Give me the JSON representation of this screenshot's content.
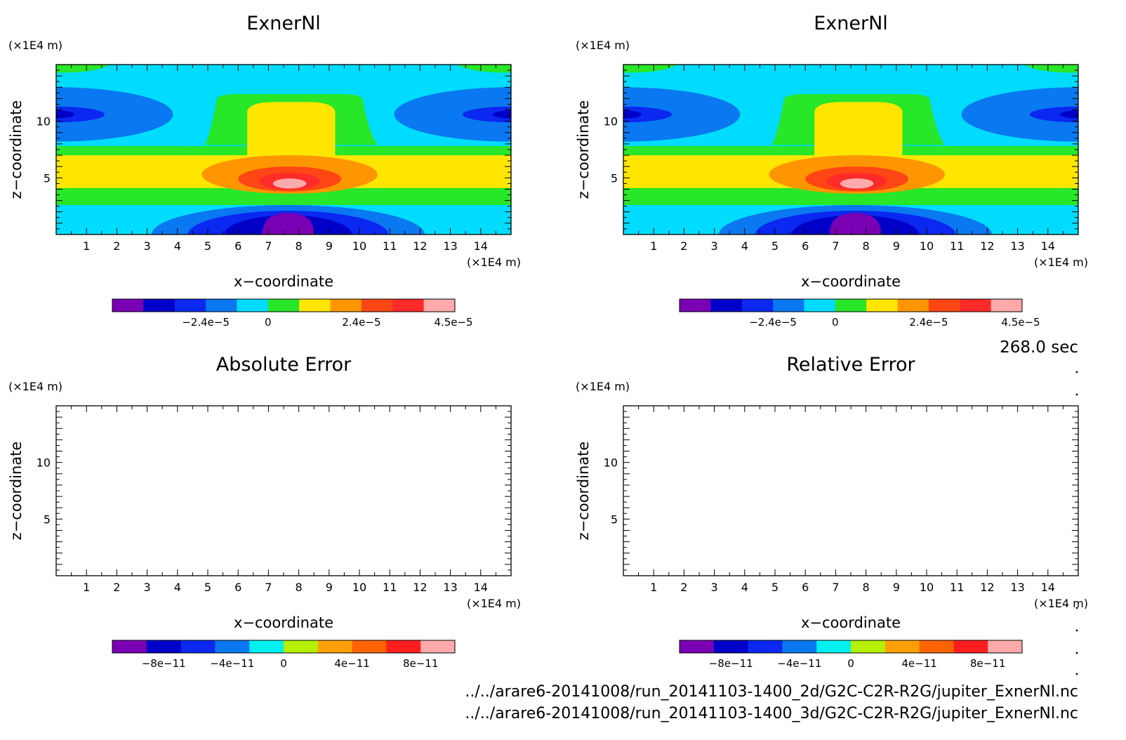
{
  "time_label": "268.0 sec",
  "footer": {
    "file_2d": "../../arare6-20141008/run_20141103-1400_2d/G2C-C2R-R2G/jupiter_ExnerNl.nc",
    "file_3d": "../../arare6-20141008/run_20141103-1400_3d/G2C-C2R-R2G/jupiter_ExnerNl.nc"
  },
  "chart_data": [
    {
      "type": "heatmap",
      "title": "ExnerNl",
      "xlabel": "x−coordinate",
      "ylabel": "z−coordinate",
      "x_unit": "(×1E4 m)",
      "y_unit": "(×1E4 m)",
      "xlim": [
        0,
        15
      ],
      "ylim": [
        0,
        15
      ],
      "x_ticks": [
        "1",
        "2",
        "3",
        "4",
        "5",
        "6",
        "7",
        "8",
        "9",
        "10",
        "11",
        "12",
        "13",
        "14"
      ],
      "y_ticks": [
        "5",
        "10"
      ],
      "colorbar": {
        "colors": [
          "#7a00b4",
          "#0000c8",
          "#0a28f0",
          "#0a78f0",
          "#00dcff",
          "#28e628",
          "#ffe600",
          "#ff9600",
          "#ff4614",
          "#ff2a2a",
          "#ffaaaa"
        ],
        "labels": [
          "−2.4e−5",
          "0",
          "2.4e−5",
          "4.5e−5"
        ]
      },
      "contours": {
        "background": "#00dcff",
        "regions": [
          {
            "level": "lowest",
            "color": "#7a00b4",
            "location": "bottom-center"
          },
          {
            "level": "strong negative",
            "color": "#0000c8",
            "location": "bottom-center / upper sides"
          },
          {
            "level": "negative",
            "color": "#0a28f0",
            "location": "bottom-center / upper sides"
          },
          {
            "level": "weak negative",
            "color": "#0a78f0",
            "location": "bottom-center / upper sides"
          },
          {
            "level": "near zero",
            "color": "#28e628",
            "location": "mid band and top"
          },
          {
            "level": "positive",
            "color": "#ffe600",
            "location": "center column"
          },
          {
            "level": "high positive",
            "color": "#ff9600",
            "location": "center"
          },
          {
            "level": "higher positive",
            "color": "#ff4614",
            "location": "center"
          },
          {
            "level": "maximum",
            "color": "#ffaaaa",
            "location": "center"
          }
        ]
      }
    },
    {
      "type": "heatmap",
      "title": "ExnerNl",
      "xlabel": "x−coordinate",
      "ylabel": "z−coordinate",
      "x_unit": "(×1E4 m)",
      "y_unit": "(×1E4 m)",
      "xlim": [
        0,
        15
      ],
      "ylim": [
        0,
        15
      ],
      "x_ticks": [
        "1",
        "2",
        "3",
        "4",
        "5",
        "6",
        "7",
        "8",
        "9",
        "10",
        "11",
        "12",
        "13",
        "14"
      ],
      "y_ticks": [
        "5",
        "10"
      ],
      "colorbar": {
        "colors": [
          "#7a00b4",
          "#0000c8",
          "#0a28f0",
          "#0a78f0",
          "#00dcff",
          "#28e628",
          "#ffe600",
          "#ff9600",
          "#ff4614",
          "#ff2a2a",
          "#ffaaaa"
        ],
        "labels": [
          "−2.4e−5",
          "0",
          "2.4e−5",
          "4.5e−5"
        ]
      }
    },
    {
      "type": "heatmap",
      "title": "Absolute Error",
      "xlabel": "x−coordinate",
      "ylabel": "z−coordinate",
      "x_unit": "(×1E4 m)",
      "y_unit": "(×1E4 m)",
      "xlim": [
        0,
        15
      ],
      "ylim": [
        0,
        15
      ],
      "x_ticks": [
        "1",
        "2",
        "3",
        "4",
        "5",
        "6",
        "7",
        "8",
        "9",
        "10",
        "11",
        "12",
        "13",
        "14"
      ],
      "y_ticks": [
        "5",
        "10"
      ],
      "empty": true,
      "colorbar": {
        "colors": [
          "#7a00b4",
          "#0000c8",
          "#0a28f0",
          "#0a78f0",
          "#00f0f0",
          "#b4f000",
          "#ffa000",
          "#ff6400",
          "#ff1e1e",
          "#ffaaaa"
        ],
        "labels": [
          "−8e−11",
          "−4e−11",
          "0",
          "4e−11",
          "8e−11"
        ]
      }
    },
    {
      "type": "heatmap",
      "title": "Relative Error",
      "xlabel": "x−coordinate",
      "ylabel": "z−coordinate",
      "x_unit": "(×1E4 m)",
      "y_unit": "(×1E4 m)",
      "xlim": [
        0,
        15
      ],
      "ylim": [
        0,
        15
      ],
      "x_ticks": [
        "1",
        "2",
        "3",
        "4",
        "5",
        "6",
        "7",
        "8",
        "9",
        "10",
        "11",
        "12",
        "13",
        "14"
      ],
      "y_ticks": [
        "5",
        "10"
      ],
      "empty": true,
      "colorbar": {
        "colors": [
          "#7a00b4",
          "#0000c8",
          "#0a28f0",
          "#0a78f0",
          "#00f0f0",
          "#b4f000",
          "#ffa000",
          "#ff6400",
          "#ff1e1e",
          "#ffaaaa"
        ],
        "labels": [
          "−8e−11",
          "−4e−11",
          "0",
          "4e−11",
          "8e−11"
        ]
      }
    }
  ]
}
